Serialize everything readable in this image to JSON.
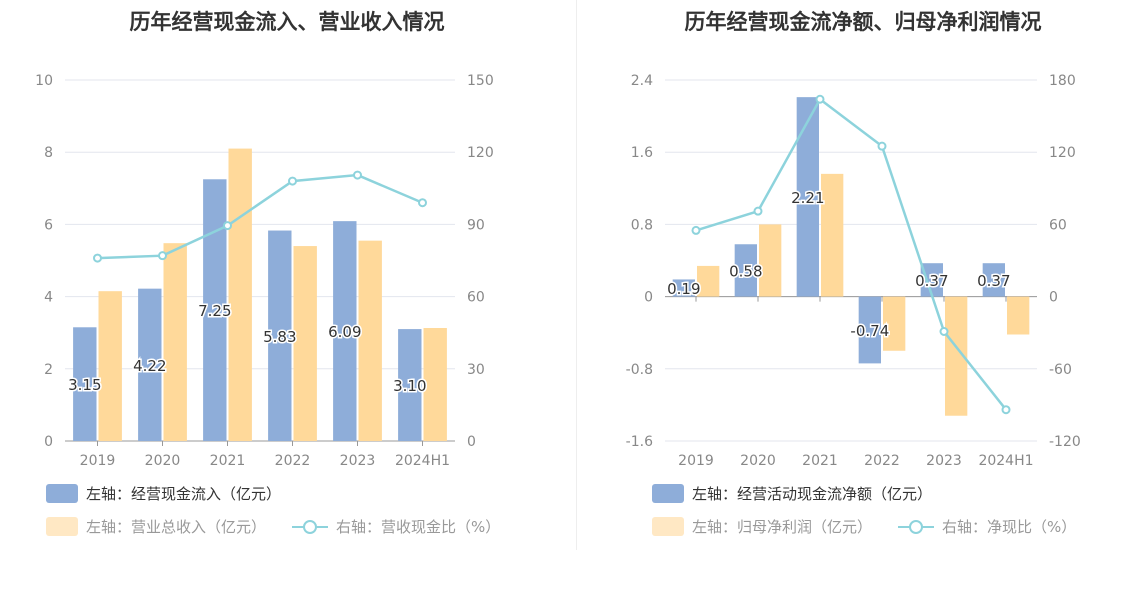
{
  "colors": {
    "blue": "#8eadd9",
    "orange": "#ffd99a",
    "line": "#8dd3dc",
    "grid": "#e3e6ee",
    "axisText": "#888888"
  },
  "chart_data": [
    {
      "type": "bar",
      "title": "历年经营现金流入、营业收入情况",
      "categories": [
        "2019",
        "2020",
        "2021",
        "2022",
        "2023",
        "2024H1"
      ],
      "ylim_left": [
        0,
        10
      ],
      "yticks_left": [
        "0",
        "2",
        "4",
        "6",
        "8",
        "10"
      ],
      "ylim_right": [
        0,
        150
      ],
      "yticks_right": [
        "0",
        "30",
        "60",
        "90",
        "120",
        "150"
      ],
      "series": [
        {
          "name": "左轴：经营现金流入（亿元）",
          "axis": "left",
          "kind": "bar",
          "values": [
            3.15,
            4.22,
            7.25,
            5.83,
            6.09,
            3.1
          ],
          "labels": [
            "3.15",
            "4.22",
            "7.25",
            "5.83",
            "6.09",
            "3.10"
          ]
        },
        {
          "name": "左轴：营业总收入（亿元）",
          "axis": "left",
          "kind": "bar",
          "values": [
            4.15,
            5.48,
            8.1,
            5.4,
            5.55,
            3.13
          ]
        },
        {
          "name": "右轴：营收现金比（%）",
          "axis": "right",
          "kind": "line",
          "values": [
            76,
            77,
            89.5,
            108,
            110.5,
            99
          ]
        }
      ],
      "grid": true,
      "legend": "bottom-left"
    },
    {
      "type": "bar",
      "title": "历年经营现金流净额、归母净利润情况",
      "categories": [
        "2019",
        "2020",
        "2021",
        "2022",
        "2023",
        "2024H1"
      ],
      "ylim_left": [
        -1.6,
        2.4
      ],
      "yticks_left": [
        "-1.6",
        "-0.8",
        "0",
        "0.8",
        "1.6",
        "2.4"
      ],
      "ylim_right": [
        -120,
        180
      ],
      "yticks_right": [
        "-120",
        "-60",
        "0",
        "60",
        "120",
        "180"
      ],
      "series": [
        {
          "name": "左轴：经营活动现金流净额（亿元）",
          "axis": "left",
          "kind": "bar",
          "values": [
            0.19,
            0.58,
            2.21,
            -0.74,
            0.37,
            0.37
          ],
          "labels": [
            "0.19",
            "0.58",
            "2.21",
            "-0.74",
            "0.37",
            "0.37"
          ]
        },
        {
          "name": "左轴：归母净利润（亿元）",
          "axis": "left",
          "kind": "bar",
          "values": [
            0.34,
            0.8,
            1.36,
            -0.6,
            -1.32,
            -0.42
          ]
        },
        {
          "name": "右轴：净现比（%）",
          "axis": "right",
          "kind": "line",
          "values": [
            55,
            71,
            164,
            125,
            -29,
            -94
          ]
        }
      ],
      "grid": true,
      "legend": "bottom-left"
    }
  ]
}
